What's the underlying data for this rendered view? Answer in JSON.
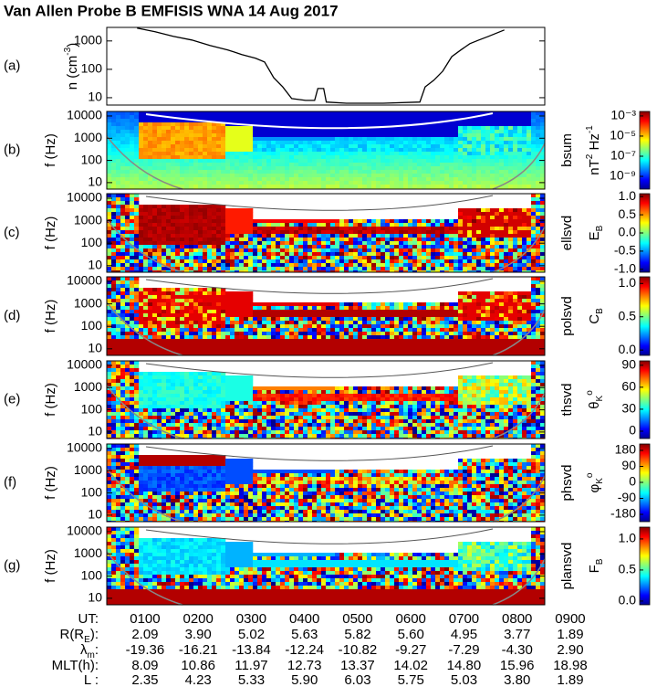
{
  "title": "Van Allen Probe B EMFISIS WNA 14 Aug 2017",
  "chart_data": [
    {
      "type": "line",
      "label": "(a)",
      "ylabel_parts": [
        {
          "text": "n (cm"
        },
        {
          "text": "-3",
          "sup": true
        },
        {
          "text": ")"
        }
      ],
      "x": [
        0.85,
        1.19,
        1.53,
        1.88,
        2.22,
        2.56,
        2.82,
        3.08,
        3.25,
        3.42,
        3.59,
        3.76,
        4.02,
        4.19,
        4.25,
        4.36,
        4.41,
        4.79,
        5.48,
        6.17,
        6.27,
        6.43,
        6.6,
        6.77,
        6.94,
        7.11,
        7.28,
        7.46,
        7.63,
        7.76
      ],
      "values": [
        2830,
        2100,
        1450,
        1080,
        690,
        480,
        330,
        245,
        180,
        51,
        24,
        9.3,
        8,
        8,
        21,
        21,
        7,
        6.4,
        6.4,
        7,
        24,
        41,
        86,
        280,
        480,
        800,
        1080,
        1450,
        1950,
        2440
      ],
      "color": "#000000",
      "xlim": [
        0.28,
        8.52
      ],
      "ylim": [
        5.5,
        3000
      ],
      "yticks": [
        10,
        100,
        1000
      ],
      "log_y": true
    },
    {
      "type": "spectrogram",
      "label": "(b)",
      "ylabel": "f (Hz)",
      "component": "bsum",
      "xlim": [
        0.28,
        8.52
      ],
      "ylim": [
        5.1,
        16000
      ],
      "yticks": [
        10,
        100,
        1000,
        10000
      ],
      "log_y": true,
      "colorbar_parts": [
        {
          "text": "nT"
        },
        {
          "text": "2",
          "sup": true
        },
        {
          "text": " Hz"
        },
        {
          "text": "-1",
          "sup": true
        }
      ],
      "clim": [
        5.4e-11,
        0.0028
      ],
      "log_c": true,
      "cticks": [
        {
          "value": 0.001,
          "label": "10⁻³"
        },
        {
          "value": 1e-05,
          "label": "10⁻⁵"
        },
        {
          "value": 1e-07,
          "label": "10⁻⁷"
        },
        {
          "value": 1e-09,
          "label": "10⁻⁹"
        }
      ]
    },
    {
      "type": "spectrogram",
      "label": "(c)",
      "ylabel": "f (Hz)",
      "component": "ellsvd",
      "xlim": [
        0.28,
        8.52
      ],
      "ylim": [
        5.1,
        16000
      ],
      "yticks": [
        10,
        100,
        1000,
        10000
      ],
      "log_y": true,
      "colorbar_parts": [
        {
          "text": "E"
        },
        {
          "text": "B",
          "sub": true
        }
      ],
      "clim": [
        -1.08,
        1.08
      ],
      "cticks": [
        {
          "value": 1,
          "label": "1.0"
        },
        0.5,
        {
          "value": 0,
          "label": "0.0"
        },
        -0.5,
        {
          "value": -1,
          "label": "-1.0"
        }
      ]
    },
    {
      "type": "spectrogram",
      "label": "(d)",
      "ylabel": "f (Hz)",
      "component": "polsvd",
      "xlim": [
        0.28,
        8.52
      ],
      "ylim": [
        5.1,
        16000
      ],
      "yticks": [
        10,
        100,
        1000,
        10000
      ],
      "log_y": true,
      "colorbar_parts": [
        {
          "text": "C"
        },
        {
          "text": "B",
          "sub": true
        }
      ],
      "clim": [
        -0.08,
        1.1
      ],
      "cticks": [
        {
          "value": 1,
          "label": "1.0"
        },
        0.5,
        {
          "value": 0,
          "label": "0.0"
        }
      ]
    },
    {
      "type": "spectrogram",
      "label": "(e)",
      "ylabel": "f (Hz)",
      "component": "thsvd",
      "xlim": [
        0.28,
        8.52
      ],
      "ylim": [
        5.1,
        16000
      ],
      "yticks": [
        10,
        100,
        1000,
        10000
      ],
      "log_y": true,
      "colorbar_parts": [
        {
          "text": "θ"
        },
        {
          "text": "K",
          "sub": true
        },
        {
          "text": "o",
          "sup": true
        }
      ],
      "clim": [
        -10,
        96
      ],
      "cticks": [
        90,
        60,
        30,
        0
      ]
    },
    {
      "type": "spectrogram",
      "label": "(f)",
      "ylabel": "f (Hz)",
      "component": "phsvd",
      "xlim": [
        0.28,
        8.52
      ],
      "ylim": [
        5.1,
        16000
      ],
      "yticks": [
        10,
        100,
        1000,
        10000
      ],
      "log_y": true,
      "colorbar_parts": [
        {
          "text": "φ"
        },
        {
          "text": "K",
          "sub": true
        },
        {
          "text": "o",
          "sup": true
        }
      ],
      "clim": [
        -221,
        216
      ],
      "cticks": [
        180,
        90,
        0,
        -90,
        -180
      ]
    },
    {
      "type": "spectrogram",
      "label": "(g)",
      "ylabel": "f (Hz)",
      "component": "plansvd",
      "xlim": [
        0.28,
        8.52
      ],
      "ylim": [
        5.1,
        16000
      ],
      "yticks": [
        10,
        100,
        1000,
        10000
      ],
      "log_y": true,
      "colorbar_parts": [
        {
          "text": "F"
        },
        {
          "text": "B",
          "sub": true
        }
      ],
      "clim": [
        -0.06,
        1.19
      ],
      "cticks": [
        {
          "value": 1,
          "label": "1.0"
        },
        0.5,
        {
          "value": 0,
          "label": "0.0"
        }
      ]
    }
  ],
  "ephemeris": {
    "rows": [
      {
        "label_parts": [
          {
            "text": "UT:"
          }
        ],
        "values": [
          "0100",
          "0200",
          "0300",
          "0400",
          "0500",
          "0600",
          "0700",
          "0800",
          "0900"
        ]
      },
      {
        "label_parts": [
          {
            "text": "R(R"
          },
          {
            "text": "E",
            "sub": true
          },
          {
            "text": "):"
          }
        ],
        "values": [
          "2.09",
          "3.90",
          "5.02",
          "5.63",
          "5.82",
          "5.60",
          "4.95",
          "3.77",
          "1.89"
        ]
      },
      {
        "label_parts": [
          {
            "text": "λ"
          },
          {
            "text": "m",
            "sub": true
          },
          {
            "text": ":"
          }
        ],
        "values": [
          "-19.36",
          "-16.21",
          "-13.84",
          "-12.24",
          "-10.82",
          "-9.27",
          "-7.29",
          "-4.30",
          "2.90"
        ]
      },
      {
        "label_parts": [
          {
            "text": "MLT(h):"
          }
        ],
        "values": [
          "8.09",
          "10.86",
          "11.97",
          "12.73",
          "13.37",
          "14.02",
          "14.80",
          "15.96",
          "18.98"
        ]
      },
      {
        "label_parts": [
          {
            "text": "L :"
          }
        ],
        "values": [
          "2.35",
          "4.23",
          "5.33",
          "5.90",
          "6.03",
          "5.75",
          "5.03",
          "3.80",
          "1.89"
        ]
      }
    ]
  }
}
